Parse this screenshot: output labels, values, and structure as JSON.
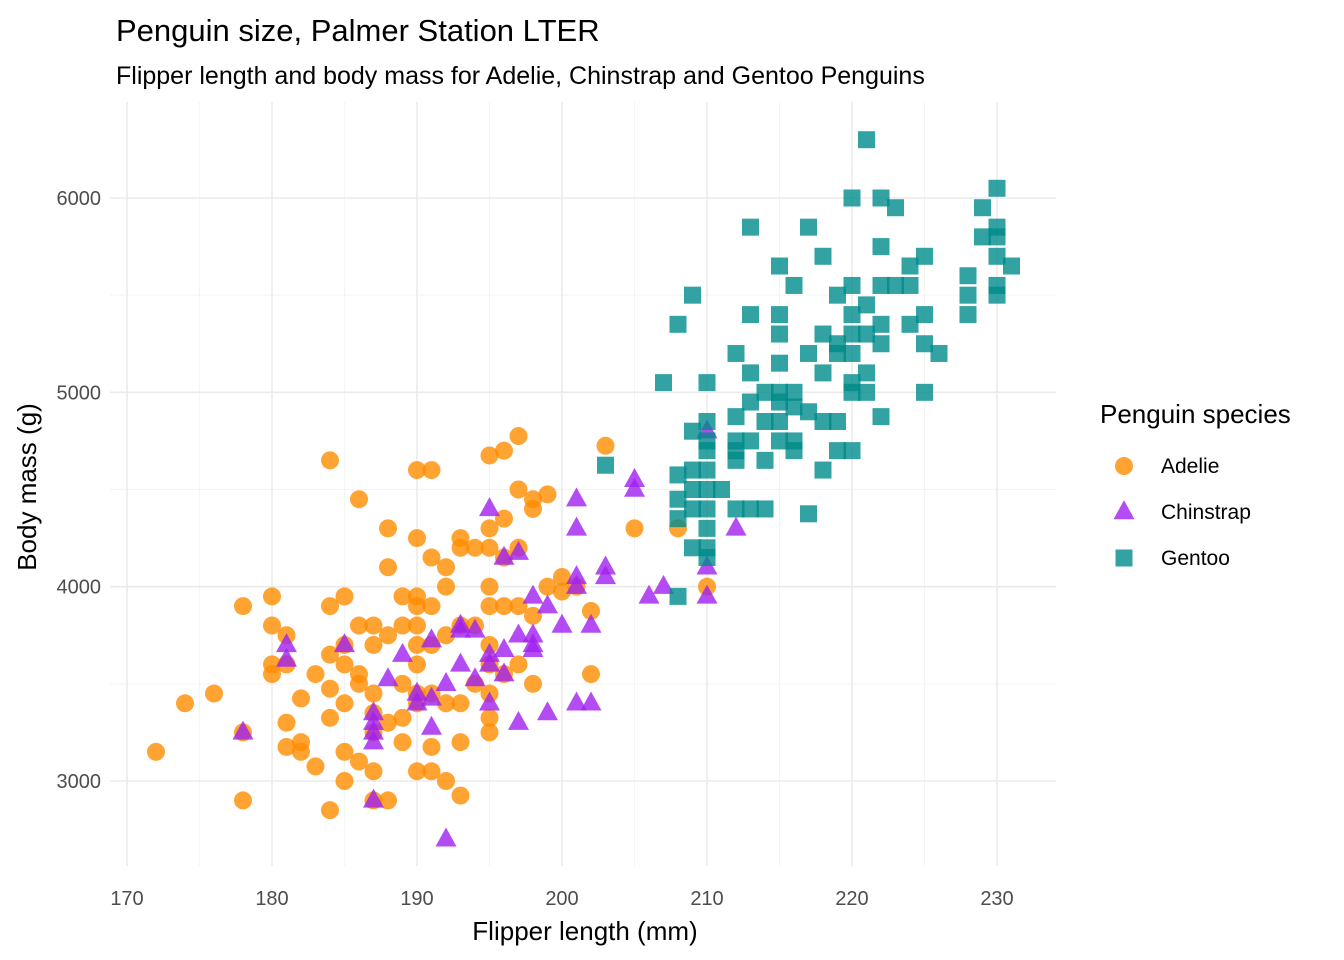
{
  "chart_data": {
    "type": "scatter",
    "title": "Penguin size, Palmer Station LTER",
    "subtitle": "Flipper length and body mass for Adelie, Chinstrap and Gentoo Penguins",
    "xlabel": "Flipper length (mm)",
    "ylabel": "Body mass (g)",
    "xlim": [
      171,
      233
    ],
    "ylim": [
      2600,
      6450
    ],
    "x_ticks": [
      170,
      180,
      190,
      200,
      210,
      220,
      230
    ],
    "y_ticks": [
      3000,
      4000,
      5000,
      6000
    ],
    "grid": true,
    "legend": {
      "title": "Penguin species",
      "position": "right"
    },
    "series": [
      {
        "name": "Adelie",
        "shape": "circle",
        "color": "#FF8C00",
        "points": [
          [
            172,
            3150
          ],
          [
            174,
            3400
          ],
          [
            176,
            3450
          ],
          [
            178,
            3900
          ],
          [
            178,
            2900
          ],
          [
            178,
            3250
          ],
          [
            180,
            3950
          ],
          [
            180,
            3800
          ],
          [
            180,
            3600
          ],
          [
            180,
            3550
          ],
          [
            181,
            3750
          ],
          [
            181,
            3600
          ],
          [
            181,
            3300
          ],
          [
            181,
            3175
          ],
          [
            182,
            3200
          ],
          [
            182,
            3150
          ],
          [
            182,
            3425
          ],
          [
            183,
            3550
          ],
          [
            183,
            3075
          ],
          [
            184,
            4650
          ],
          [
            184,
            3900
          ],
          [
            184,
            3650
          ],
          [
            184,
            3475
          ],
          [
            184,
            3325
          ],
          [
            184,
            2850
          ],
          [
            185,
            3950
          ],
          [
            185,
            3700
          ],
          [
            185,
            3600
          ],
          [
            185,
            3400
          ],
          [
            185,
            3150
          ],
          [
            185,
            3000
          ],
          [
            186,
            4450
          ],
          [
            186,
            3800
          ],
          [
            186,
            3550
          ],
          [
            186,
            3500
          ],
          [
            186,
            3100
          ],
          [
            187,
            3800
          ],
          [
            187,
            3700
          ],
          [
            187,
            3450
          ],
          [
            187,
            3350
          ],
          [
            187,
            3250
          ],
          [
            187,
            3050
          ],
          [
            187,
            2900
          ],
          [
            188,
            4300
          ],
          [
            188,
            4100
          ],
          [
            188,
            3750
          ],
          [
            188,
            3300
          ],
          [
            188,
            2900
          ],
          [
            189,
            3950
          ],
          [
            189,
            3800
          ],
          [
            189,
            3500
          ],
          [
            189,
            3325
          ],
          [
            189,
            3200
          ],
          [
            190,
            4600
          ],
          [
            190,
            4250
          ],
          [
            190,
            3950
          ],
          [
            190,
            3900
          ],
          [
            190,
            3800
          ],
          [
            190,
            3700
          ],
          [
            190,
            3600
          ],
          [
            190,
            3450
          ],
          [
            190,
            3400
          ],
          [
            190,
            3050
          ],
          [
            191,
            4600
          ],
          [
            191,
            4150
          ],
          [
            191,
            3900
          ],
          [
            191,
            3700
          ],
          [
            191,
            3450
          ],
          [
            191,
            3175
          ],
          [
            191,
            3050
          ],
          [
            192,
            4100
          ],
          [
            192,
            4000
          ],
          [
            192,
            3750
          ],
          [
            192,
            3400
          ],
          [
            192,
            3000
          ],
          [
            193,
            4250
          ],
          [
            193,
            4200
          ],
          [
            193,
            3800
          ],
          [
            193,
            3400
          ],
          [
            193,
            3200
          ],
          [
            193,
            2925
          ],
          [
            194,
            4200
          ],
          [
            194,
            3800
          ],
          [
            194,
            3500
          ],
          [
            195,
            4675
          ],
          [
            195,
            4300
          ],
          [
            195,
            4200
          ],
          [
            195,
            4000
          ],
          [
            195,
            3900
          ],
          [
            195,
            3700
          ],
          [
            195,
            3600
          ],
          [
            195,
            3450
          ],
          [
            195,
            3325
          ],
          [
            195,
            3250
          ],
          [
            196,
            4700
          ],
          [
            196,
            4350
          ],
          [
            196,
            4150
          ],
          [
            196,
            3900
          ],
          [
            196,
            3550
          ],
          [
            197,
            4775
          ],
          [
            197,
            4500
          ],
          [
            197,
            4200
          ],
          [
            197,
            3900
          ],
          [
            197,
            3600
          ],
          [
            198,
            4400
          ],
          [
            198,
            4450
          ],
          [
            198,
            3500
          ],
          [
            198,
            3850
          ],
          [
            199,
            4475
          ],
          [
            199,
            4000
          ],
          [
            200,
            4050
          ],
          [
            200,
            3975
          ],
          [
            201,
            4000
          ],
          [
            202,
            3875
          ],
          [
            202,
            3550
          ],
          [
            203,
            4725
          ],
          [
            205,
            4300
          ],
          [
            208,
            4300
          ],
          [
            210,
            4000
          ]
        ]
      },
      {
        "name": "Chinstrap",
        "shape": "triangle",
        "color": "#A020F0",
        "points": [
          [
            178,
            3250
          ],
          [
            181,
            3700
          ],
          [
            181,
            3625
          ],
          [
            185,
            3700
          ],
          [
            187,
            3350
          ],
          [
            187,
            3300
          ],
          [
            187,
            3250
          ],
          [
            187,
            3200
          ],
          [
            187,
            2900
          ],
          [
            188,
            3525
          ],
          [
            189,
            3650
          ],
          [
            190,
            3450
          ],
          [
            190,
            3400
          ],
          [
            191,
            3725
          ],
          [
            191,
            3425
          ],
          [
            191,
            3275
          ],
          [
            192,
            2700
          ],
          [
            192,
            3500
          ],
          [
            193,
            3800
          ],
          [
            193,
            3600
          ],
          [
            193,
            3775
          ],
          [
            194,
            3775
          ],
          [
            194,
            3525
          ],
          [
            195,
            4400
          ],
          [
            195,
            3650
          ],
          [
            195,
            3600
          ],
          [
            195,
            3400
          ],
          [
            196,
            4150
          ],
          [
            196,
            3675
          ],
          [
            196,
            3550
          ],
          [
            197,
            4175
          ],
          [
            197,
            3750
          ],
          [
            197,
            3300
          ],
          [
            198,
            3950
          ],
          [
            198,
            3700
          ],
          [
            198,
            3675
          ],
          [
            198,
            3750
          ],
          [
            199,
            3900
          ],
          [
            199,
            3350
          ],
          [
            200,
            3800
          ],
          [
            201,
            4450
          ],
          [
            201,
            4300
          ],
          [
            201,
            4050
          ],
          [
            201,
            4000
          ],
          [
            201,
            3400
          ],
          [
            202,
            3800
          ],
          [
            202,
            3400
          ],
          [
            203,
            4100
          ],
          [
            203,
            4050
          ],
          [
            205,
            4550
          ],
          [
            205,
            4500
          ],
          [
            206,
            3950
          ],
          [
            207,
            4000
          ],
          [
            210,
            4800
          ],
          [
            210,
            4100
          ],
          [
            210,
            3950
          ],
          [
            212,
            4300
          ]
        ]
      },
      {
        "name": "Gentoo",
        "shape": "square",
        "color": "#008B8B",
        "points": [
          [
            203,
            4625
          ],
          [
            207,
            5050
          ],
          [
            208,
            5350
          ],
          [
            208,
            4575
          ],
          [
            208,
            4450
          ],
          [
            208,
            4350
          ],
          [
            208,
            3950
          ],
          [
            209,
            5500
          ],
          [
            209,
            4800
          ],
          [
            209,
            4600
          ],
          [
            209,
            4500
          ],
          [
            209,
            4400
          ],
          [
            209,
            4200
          ],
          [
            210,
            4850
          ],
          [
            210,
            4750
          ],
          [
            210,
            4700
          ],
          [
            210,
            4600
          ],
          [
            210,
            4500
          ],
          [
            210,
            4400
          ],
          [
            210,
            4300
          ],
          [
            210,
            4200
          ],
          [
            210,
            4150
          ],
          [
            210,
            5050
          ],
          [
            211,
            4500
          ],
          [
            212,
            5200
          ],
          [
            212,
            4875
          ],
          [
            212,
            4750
          ],
          [
            212,
            4700
          ],
          [
            212,
            4650
          ],
          [
            212,
            4400
          ],
          [
            213,
            5850
          ],
          [
            213,
            5400
          ],
          [
            213,
            5100
          ],
          [
            213,
            4950
          ],
          [
            213,
            4750
          ],
          [
            213,
            4400
          ],
          [
            214,
            5000
          ],
          [
            214,
            4850
          ],
          [
            214,
            4650
          ],
          [
            214,
            4400
          ],
          [
            215,
            5650
          ],
          [
            215,
            5400
          ],
          [
            215,
            5300
          ],
          [
            215,
            5150
          ],
          [
            215,
            5000
          ],
          [
            215,
            4950
          ],
          [
            215,
            4850
          ],
          [
            215,
            4750
          ],
          [
            216,
            5550
          ],
          [
            216,
            5000
          ],
          [
            216,
            4925
          ],
          [
            216,
            4750
          ],
          [
            216,
            4700
          ],
          [
            217,
            5850
          ],
          [
            217,
            5200
          ],
          [
            217,
            4900
          ],
          [
            217,
            4375
          ],
          [
            218,
            5700
          ],
          [
            218,
            5300
          ],
          [
            218,
            5100
          ],
          [
            218,
            4600
          ],
          [
            218,
            4850
          ],
          [
            219,
            5500
          ],
          [
            219,
            5250
          ],
          [
            219,
            5200
          ],
          [
            219,
            4850
          ],
          [
            219,
            4700
          ],
          [
            220,
            6000
          ],
          [
            220,
            5550
          ],
          [
            220,
            5400
          ],
          [
            220,
            5300
          ],
          [
            220,
            5200
          ],
          [
            220,
            5050
          ],
          [
            220,
            5000
          ],
          [
            220,
            4700
          ],
          [
            221,
            6300
          ],
          [
            221,
            5450
          ],
          [
            221,
            5300
          ],
          [
            221,
            5100
          ],
          [
            221,
            5000
          ],
          [
            222,
            6000
          ],
          [
            222,
            5750
          ],
          [
            222,
            5550
          ],
          [
            222,
            5350
          ],
          [
            222,
            5250
          ],
          [
            222,
            4875
          ],
          [
            223,
            5950
          ],
          [
            223,
            5550
          ],
          [
            224,
            5650
          ],
          [
            224,
            5550
          ],
          [
            224,
            5350
          ],
          [
            225,
            5700
          ],
          [
            225,
            5400
          ],
          [
            225,
            5250
          ],
          [
            225,
            5000
          ],
          [
            226,
            5200
          ],
          [
            228,
            5600
          ],
          [
            228,
            5500
          ],
          [
            228,
            5400
          ],
          [
            229,
            5950
          ],
          [
            229,
            5800
          ],
          [
            230,
            6050
          ],
          [
            230,
            5850
          ],
          [
            230,
            5800
          ],
          [
            230,
            5700
          ],
          [
            230,
            5550
          ],
          [
            230,
            5500
          ],
          [
            231,
            5650
          ]
        ]
      }
    ]
  }
}
